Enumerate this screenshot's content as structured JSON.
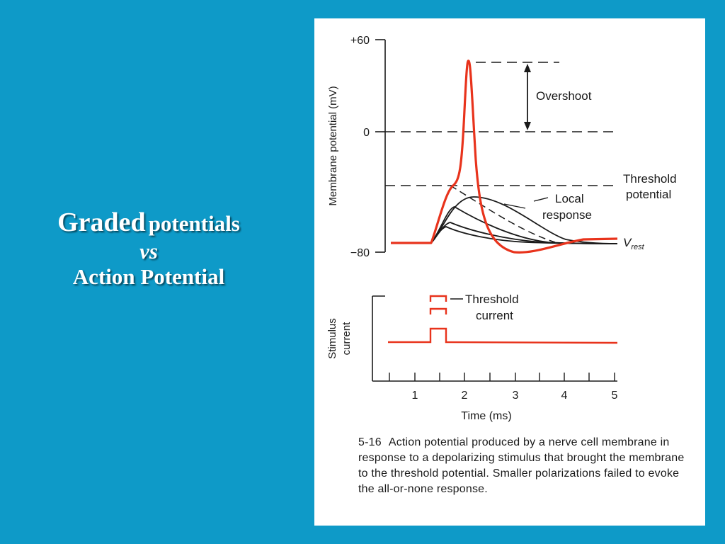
{
  "slide": {
    "title_word1": "Graded",
    "title_word2": "potentials",
    "title_vs": "vs",
    "title_line3": "Action Potential",
    "background": "#0e9ac8"
  },
  "figure": {
    "ylabel_top": "Membrane potential (mV)",
    "yticks": [
      "+60",
      "0",
      "−80"
    ],
    "overshoot_label": "Overshoot",
    "threshold_label_1": "Threshold",
    "threshold_label_2": "potential",
    "local_label_1": "Local",
    "local_label_2": "response",
    "vrest_main": "V",
    "vrest_sub": "rest",
    "stimulus_label_1": "Stimulus",
    "stimulus_label_2": "current",
    "threshold_current_1": "Threshold",
    "threshold_current_2": "current",
    "xticks": [
      "1",
      "2",
      "3",
      "4",
      "5"
    ],
    "xlabel": "Time (ms)",
    "caption_number": "5-16",
    "caption_text": "Action potential produced by a nerve cell membrane in response to a depolarizing stimulus that brought the membrane to the threshold potential. Smaller polarizations failed to evoke the all-or-none response.",
    "ap_color": "#e8331c",
    "line_color": "#1a1a1a"
  }
}
